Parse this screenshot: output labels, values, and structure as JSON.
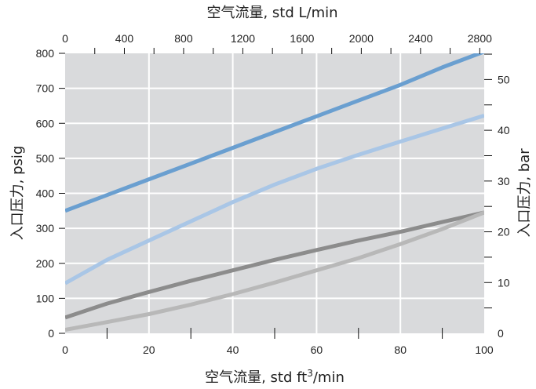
{
  "chart_data": {
    "type": "line",
    "x": [
      0,
      10,
      20,
      30,
      40,
      50,
      60,
      70,
      80,
      90,
      100
    ],
    "series": [
      {
        "color": "#6a9fd0",
        "values": [
          350,
          395,
          440,
          485,
          530,
          575,
          620,
          665,
          710,
          760,
          805
        ]
      },
      {
        "color": "#a9c6e6",
        "values": [
          143,
          210,
          265,
          320,
          375,
          425,
          470,
          510,
          548,
          585,
          622
        ]
      },
      {
        "color": "#8c8c8c",
        "values": [
          45,
          85,
          118,
          150,
          180,
          210,
          238,
          265,
          290,
          318,
          345
        ]
      },
      {
        "color": "#b8b8b8",
        "values": [
          10,
          32,
          55,
          82,
          112,
          145,
          180,
          215,
          255,
          298,
          345
        ]
      }
    ],
    "x_bottom": {
      "label": "空气流量, std ft³/min",
      "label_base": "空气流量, std ft",
      "label_sup": "3",
      "label_tail": "/min",
      "range": [
        0,
        100
      ],
      "ticks": [
        "0",
        "20",
        "40",
        "60",
        "80",
        "100"
      ],
      "minor_step": 10
    },
    "x_top": {
      "label": "空气流量, std L/min",
      "range": [
        0,
        2830
      ],
      "ticks": [
        "0",
        "400",
        "800",
        "1200",
        "1600",
        "2000",
        "2400",
        "2800"
      ],
      "minor_step": 200
    },
    "y_left": {
      "label": "入口压力, psig",
      "range": [
        0,
        800
      ],
      "ticks": [
        "0",
        "100",
        "200",
        "300",
        "400",
        "500",
        "600",
        "700",
        "800"
      ]
    },
    "y_right": {
      "label": "入口压力, bar",
      "range": [
        0,
        55.16
      ],
      "ticks": [
        "0",
        "10",
        "20",
        "30",
        "40",
        "50"
      ],
      "minor_step": 5
    },
    "grid": true,
    "plot_background": "#d9dadc",
    "grid_color": "#ffffff"
  }
}
